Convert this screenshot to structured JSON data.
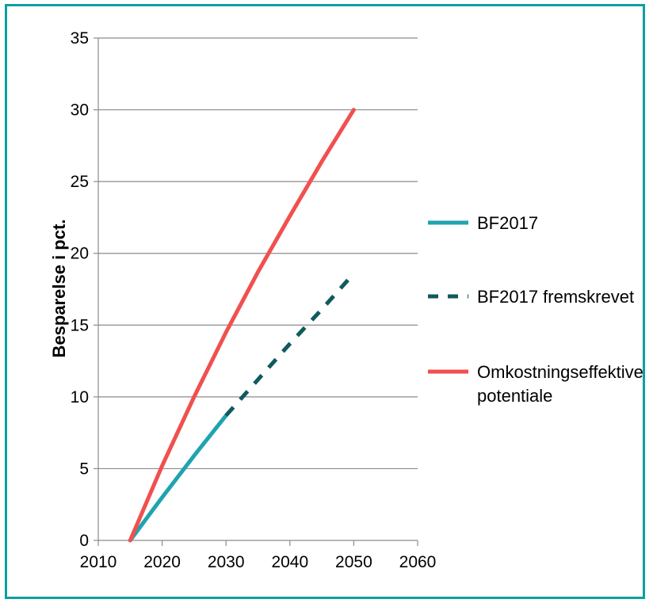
{
  "chart_data": {
    "type": "line",
    "title": "",
    "xlabel": "",
    "ylabel": "Besparelse i pct.",
    "xlim": [
      2010,
      2060
    ],
    "ylim": [
      0,
      35
    ],
    "x_ticks": [
      2010,
      2020,
      2030,
      2040,
      2050,
      2060
    ],
    "y_ticks": [
      0,
      5,
      10,
      15,
      20,
      25,
      30,
      35
    ],
    "grid": "horizontal",
    "legend_position": "right",
    "series": [
      {
        "name": "BF2017",
        "color": "#1fa3b0",
        "style": "solid",
        "x": [
          2015,
          2020,
          2025,
          2030
        ],
        "y": [
          0,
          3.0,
          5.9,
          8.7
        ]
      },
      {
        "name": "BF2017 fremskrevet",
        "color": "#0f5a5e",
        "style": "dashed",
        "x": [
          2030,
          2035,
          2040,
          2045,
          2050
        ],
        "y": [
          8.7,
          11.2,
          13.7,
          16.1,
          18.6
        ]
      },
      {
        "name": "Omkostningseffektive potentiale",
        "color": "#f0504f",
        "style": "solid",
        "x": [
          2015,
          2020,
          2025,
          2030,
          2035,
          2040,
          2045,
          2050
        ],
        "y": [
          0,
          5.2,
          10.0,
          14.5,
          18.7,
          22.6,
          26.4,
          30.0
        ]
      }
    ]
  }
}
